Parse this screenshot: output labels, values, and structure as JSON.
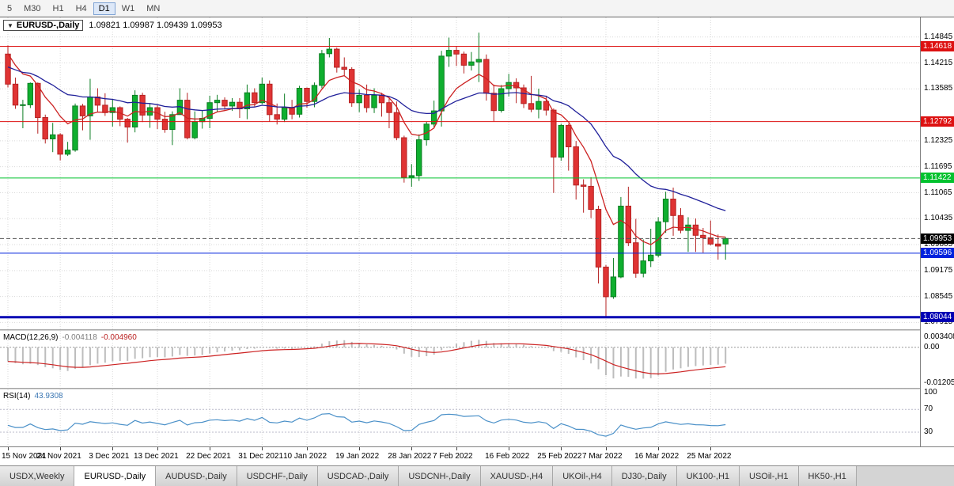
{
  "toolbar": {
    "timeframes": [
      "5",
      "M30",
      "H1",
      "H4",
      "D1",
      "W1",
      "MN"
    ],
    "active": "D1"
  },
  "chart": {
    "title": "EURUSD-,Daily",
    "ohlc_text": "1.09821 1.09987 1.09439 1.09953"
  },
  "macd_panel": {
    "name_label": "MACD(12,26,9)",
    "value1": "-0.004118",
    "value2": "-0.004960",
    "axis_labels": [
      {
        "text": "0.003408",
        "value": 0.003408
      },
      {
        "text": "0.00",
        "value": 0
      },
      {
        "text": "-0.012054",
        "value": -0.012054
      }
    ]
  },
  "rsi_panel": {
    "name_label": "RSI(14)",
    "value": "43.9308",
    "axis_labels": [
      {
        "text": "100",
        "value": 100
      },
      {
        "text": "70",
        "value": 70
      },
      {
        "text": "30",
        "value": 30
      }
    ],
    "levels": [
      70,
      30
    ]
  },
  "tabs": {
    "items": [
      "USDX,Weekly",
      "EURUSD-,Daily",
      "AUDUSD-,Daily",
      "USDCHF-,Daily",
      "USDCAD-,Daily",
      "USDCNH-,Daily",
      "XAUUSD-,H4",
      "UKOil-,H4",
      "DJ30-,Daily",
      "UK100-,H1",
      "USOil-,H1",
      "HK50-,H1"
    ],
    "active": "EURUSD-,Daily"
  },
  "colors": {
    "up": "#0faf2f",
    "up_border": "#0b7d22",
    "down": "#e03434",
    "down_border": "#b52222",
    "grid": "#d9d9d9",
    "macd_hist": "#bdbdbd",
    "macd_signal": "#cc2222",
    "rsi_line": "#4a90c8",
    "rsi_level": "#b9b9c9",
    "current_price_bg": "#000000",
    "current_price_line": "#555555"
  },
  "chart_data": {
    "type": "candlestick",
    "symbol": "EURUSD-",
    "timeframe": "Daily",
    "title": "EURUSD-,Daily 1.09821 1.09987 1.09439 1.09953",
    "ylim": [
      1.0775,
      1.1532
    ],
    "grid_labels": [
      "1.14845",
      "1.14215",
      "1.13585",
      "1.12325",
      "1.11695",
      "1.11065",
      "1.10435",
      "1.09805",
      "1.09175",
      "1.08545",
      "1.07915"
    ],
    "x_tick_labels": [
      "15 Nov 2021",
      "24 Nov 2021",
      "3 Dec 2021",
      "13 Dec 2021",
      "22 Dec 2021",
      "31 Dec 2021",
      "10 Jan 2022",
      "19 Jan 2022",
      "28 Jan 2022",
      "7 Feb 2022",
      "16 Feb 2022",
      "25 Feb 2022",
      "7 Mar 2022",
      "16 Mar 2022",
      "25 Mar 2022"
    ],
    "x_tick_indices": [
      0,
      7,
      14,
      20,
      27,
      34,
      40,
      47,
      54,
      60,
      67,
      74,
      80,
      87,
      94
    ],
    "hlines": [
      {
        "value": 1.14618,
        "label": "1.14618",
        "color": "#dd1111",
        "width": 1
      },
      {
        "value": 1.12792,
        "label": "1.12792",
        "color": "#dd1111",
        "width": 1
      },
      {
        "value": 1.11422,
        "label": "1.11422",
        "color": "#00c22e",
        "width": 1
      },
      {
        "value": 1.09596,
        "label": "1.09596",
        "color": "#0022dd",
        "width": 1
      },
      {
        "value": 1.08044,
        "label": "1.08044",
        "color": "#0000b4",
        "width": 3
      }
    ],
    "current_price": {
      "value": 1.09953,
      "label": "1.09953"
    },
    "current_bar": {
      "open": 1.09821,
      "high": 1.09987,
      "low": 1.09439,
      "close": 1.09953
    },
    "ma": [
      {
        "period": 8,
        "seed": 1.1465,
        "color": "#cc2222"
      },
      {
        "period": 26,
        "seed": 1.1415,
        "color": "#20209a"
      }
    ],
    "macd": {
      "fast": 12,
      "slow": 26,
      "signal": 9,
      "seed_fast": 1.1445,
      "seed_slow": 1.149,
      "ylim": [
        -0.0136,
        0.0055
      ]
    },
    "rsi": {
      "period": 14,
      "ylim": [
        5,
        105
      ]
    },
    "candles": [
      [
        1.1443,
        1.1464,
        1.1362,
        1.137
      ],
      [
        1.137,
        1.1386,
        1.131,
        1.1319
      ],
      [
        1.1319,
        1.1332,
        1.1263,
        1.132
      ],
      [
        1.132,
        1.1374,
        1.1312,
        1.1372
      ],
      [
        1.1372,
        1.1374,
        1.125,
        1.1289
      ],
      [
        1.1289,
        1.1296,
        1.1226,
        1.1237
      ],
      [
        1.1237,
        1.1276,
        1.1205,
        1.1247
      ],
      [
        1.1247,
        1.1251,
        1.1185,
        1.12
      ],
      [
        1.12,
        1.123,
        1.1196,
        1.121
      ],
      [
        1.121,
        1.1323,
        1.1206,
        1.1317
      ],
      [
        1.1317,
        1.1322,
        1.1258,
        1.1293
      ],
      [
        1.1293,
        1.1383,
        1.1235,
        1.1339
      ],
      [
        1.1339,
        1.136,
        1.1302,
        1.1319
      ],
      [
        1.1319,
        1.1348,
        1.1293,
        1.1301
      ],
      [
        1.1301,
        1.1334,
        1.1267,
        1.1313
      ],
      [
        1.1313,
        1.1316,
        1.1268,
        1.1285
      ],
      [
        1.1285,
        1.1288,
        1.1228,
        1.1266
      ],
      [
        1.1266,
        1.1355,
        1.1253,
        1.1343
      ],
      [
        1.1343,
        1.1349,
        1.1278,
        1.1295
      ],
      [
        1.1295,
        1.1324,
        1.1264,
        1.1313
      ],
      [
        1.1313,
        1.132,
        1.1261,
        1.1285
      ],
      [
        1.1285,
        1.1303,
        1.1252,
        1.126
      ],
      [
        1.126,
        1.1304,
        1.1222,
        1.1296
      ],
      [
        1.1296,
        1.136,
        1.1296,
        1.1331
      ],
      [
        1.1331,
        1.1349,
        1.1236,
        1.124
      ],
      [
        1.124,
        1.1304,
        1.1236,
        1.1279
      ],
      [
        1.1279,
        1.1307,
        1.1262,
        1.1287
      ],
      [
        1.1287,
        1.1342,
        1.1263,
        1.1325
      ],
      [
        1.1325,
        1.1344,
        1.1303,
        1.1331
      ],
      [
        1.1331,
        1.1338,
        1.1308,
        1.1317
      ],
      [
        1.1317,
        1.1336,
        1.1305,
        1.1326
      ],
      [
        1.1326,
        1.1336,
        1.1288,
        1.131
      ],
      [
        1.131,
        1.1369,
        1.1285,
        1.1349
      ],
      [
        1.1349,
        1.136,
        1.1316,
        1.1325
      ],
      [
        1.1325,
        1.1386,
        1.1321,
        1.137
      ],
      [
        1.137,
        1.1379,
        1.1279,
        1.1296
      ],
      [
        1.1296,
        1.1323,
        1.1272,
        1.1285
      ],
      [
        1.1285,
        1.1347,
        1.1278,
        1.1313
      ],
      [
        1.1313,
        1.1332,
        1.1285,
        1.1297
      ],
      [
        1.1297,
        1.1366,
        1.1289,
        1.136
      ],
      [
        1.136,
        1.1362,
        1.1313,
        1.1328
      ],
      [
        1.1328,
        1.1374,
        1.1314,
        1.1367
      ],
      [
        1.1367,
        1.1453,
        1.136,
        1.1444
      ],
      [
        1.1444,
        1.1482,
        1.1435,
        1.1455
      ],
      [
        1.1455,
        1.1459,
        1.1398,
        1.1411
      ],
      [
        1.1411,
        1.1435,
        1.1391,
        1.1406
      ],
      [
        1.1406,
        1.1411,
        1.1315,
        1.1325
      ],
      [
        1.1325,
        1.1357,
        1.1302,
        1.1343
      ],
      [
        1.1343,
        1.1369,
        1.1301,
        1.1313
      ],
      [
        1.1313,
        1.136,
        1.13,
        1.1343
      ],
      [
        1.1343,
        1.1349,
        1.1291,
        1.1325
      ],
      [
        1.1325,
        1.1338,
        1.1263,
        1.1301
      ],
      [
        1.1301,
        1.1328,
        1.1234,
        1.124
      ],
      [
        1.124,
        1.1245,
        1.1131,
        1.1144
      ],
      [
        1.1144,
        1.1176,
        1.1121,
        1.1148
      ],
      [
        1.1148,
        1.1248,
        1.1135,
        1.1235
      ],
      [
        1.1235,
        1.1279,
        1.1221,
        1.1273
      ],
      [
        1.1273,
        1.133,
        1.1265,
        1.1305
      ],
      [
        1.1305,
        1.1451,
        1.1267,
        1.1438
      ],
      [
        1.1438,
        1.1483,
        1.1412,
        1.1452
      ],
      [
        1.1452,
        1.1462,
        1.1414,
        1.1443
      ],
      [
        1.1443,
        1.1449,
        1.1396,
        1.1416
      ],
      [
        1.1416,
        1.1448,
        1.1403,
        1.1424
      ],
      [
        1.1424,
        1.1495,
        1.1375,
        1.143
      ],
      [
        1.143,
        1.1442,
        1.133,
        1.1348
      ],
      [
        1.1348,
        1.1369,
        1.128,
        1.1306
      ],
      [
        1.1306,
        1.1368,
        1.1301,
        1.1359
      ],
      [
        1.1359,
        1.1395,
        1.134,
        1.1374
      ],
      [
        1.1374,
        1.1384,
        1.1324,
        1.1361
      ],
      [
        1.1361,
        1.1369,
        1.1312,
        1.1323
      ],
      [
        1.1323,
        1.139,
        1.1302,
        1.1309
      ],
      [
        1.1309,
        1.1359,
        1.1287,
        1.1328
      ],
      [
        1.1328,
        1.1342,
        1.1294,
        1.1307
      ],
      [
        1.1307,
        1.1311,
        1.1106,
        1.1193
      ],
      [
        1.1193,
        1.1274,
        1.1184,
        1.127
      ],
      [
        1.127,
        1.1274,
        1.116,
        1.1218
      ],
      [
        1.1218,
        1.1232,
        1.109,
        1.1125
      ],
      [
        1.1125,
        1.1139,
        1.1058,
        1.1122
      ],
      [
        1.1122,
        1.1144,
        1.1045,
        1.1066
      ],
      [
        1.1066,
        1.1075,
        1.0886,
        1.0926
      ],
      [
        1.0926,
        1.0931,
        1.0806,
        1.0854
      ],
      [
        1.0854,
        1.0948,
        1.0849,
        1.0902
      ],
      [
        1.0902,
        1.1096,
        1.0899,
        1.1074
      ],
      [
        1.1074,
        1.1121,
        1.0977,
        1.0985
      ],
      [
        1.0985,
        1.1043,
        1.09,
        1.0911
      ],
      [
        1.0911,
        1.0993,
        1.0901,
        1.0941
      ],
      [
        1.0941,
        1.1019,
        1.0926,
        1.0955
      ],
      [
        1.0955,
        1.1047,
        1.095,
        1.1036
      ],
      [
        1.1036,
        1.1109,
        1.1009,
        1.1091
      ],
      [
        1.1091,
        1.1119,
        1.1002,
        1.1051
      ],
      [
        1.1051,
        1.1069,
        1.1008,
        1.1015
      ],
      [
        1.1015,
        1.1047,
        1.0963,
        1.1028
      ],
      [
        1.1028,
        1.1044,
        1.0963,
        1.1003
      ],
      [
        1.1003,
        1.1021,
        1.0961,
        1.0997
      ],
      [
        1.0997,
        1.1039,
        1.0979,
        1.0982
      ],
      [
        1.0982,
        1.1005,
        1.0944,
        1.0977
      ],
      [
        1.09821,
        1.09987,
        1.09439,
        1.09953
      ]
    ]
  }
}
